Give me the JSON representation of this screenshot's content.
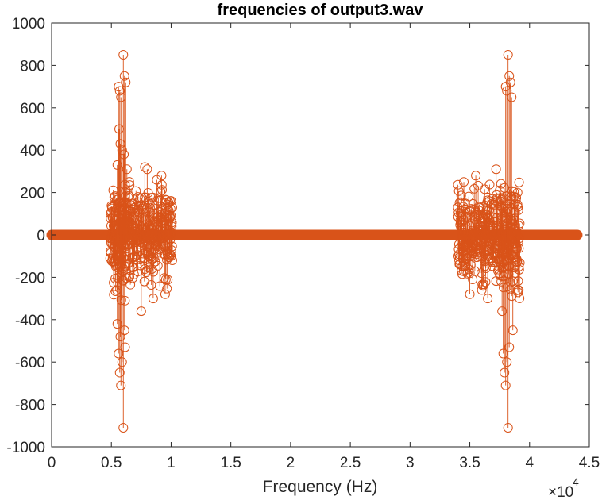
{
  "chart_data": {
    "type": "scatter",
    "title": "frequencies of output3.wav",
    "xlabel": "Frequency (Hz)",
    "ylabel": "",
    "xlim": [
      0,
      45000
    ],
    "ylim": [
      -1000,
      1000
    ],
    "grid": false,
    "x_tick_values": [
      0,
      5000,
      10000,
      15000,
      20000,
      25000,
      30000,
      35000,
      40000,
      45000
    ],
    "x_tick_labels": [
      "0",
      "0.5",
      "1",
      "1.5",
      "2",
      "2.5",
      "3",
      "3.5",
      "4",
      "4.5"
    ],
    "y_tick_values": [
      1000,
      800,
      600,
      400,
      200,
      0,
      -200,
      -400,
      -600,
      -800,
      -1000
    ],
    "y_tick_labels": [
      "1000",
      "800",
      "600",
      "400",
      "200",
      "0",
      "-200",
      "-400",
      "-600",
      "-800",
      "-1000"
    ],
    "x_exponent": {
      "base": "×10",
      "power": "4"
    },
    "marker": "circle",
    "color": "#D95319",
    "series": [
      {
        "values_description_only": false,
        "baseline": {
          "from": 0,
          "to": 44000,
          "value": 0
        },
        "points": [
          [
            5600,
            700
          ],
          [
            5700,
            680
          ],
          [
            5800,
            650
          ],
          [
            6000,
            850
          ],
          [
            6100,
            750
          ],
          [
            6200,
            720
          ],
          [
            5500,
            330
          ],
          [
            5650,
            500
          ],
          [
            5750,
            430
          ],
          [
            5900,
            400
          ],
          [
            6050,
            380
          ],
          [
            6300,
            310
          ],
          [
            7800,
            320
          ],
          [
            8000,
            310
          ],
          [
            8800,
            260
          ],
          [
            9200,
            280
          ],
          [
            9900,
            160
          ],
          [
            10100,
            130
          ],
          [
            5600,
            -560
          ],
          [
            5700,
            -650
          ],
          [
            5800,
            -710
          ],
          [
            5900,
            -600
          ],
          [
            6000,
            -910
          ],
          [
            6150,
            -530
          ],
          [
            5500,
            -420
          ],
          [
            5750,
            -480
          ],
          [
            6100,
            -450
          ],
          [
            7500,
            -360
          ],
          [
            8500,
            -300
          ],
          [
            9500,
            -280
          ],
          [
            10000,
            -100
          ],
          [
            10100,
            -120
          ],
          [
            34000,
            130
          ],
          [
            34100,
            -120
          ],
          [
            35000,
            -280
          ],
          [
            35500,
            280
          ],
          [
            36500,
            -300
          ],
          [
            37200,
            310
          ],
          [
            38000,
            700
          ],
          [
            38100,
            680
          ],
          [
            38200,
            850
          ],
          [
            38300,
            750
          ],
          [
            38400,
            720
          ],
          [
            38500,
            650
          ],
          [
            37700,
            -360
          ],
          [
            37800,
            -560
          ],
          [
            37900,
            -650
          ],
          [
            38000,
            -710
          ],
          [
            38100,
            -600
          ],
          [
            38200,
            -910
          ],
          [
            38300,
            -530
          ],
          [
            38600,
            -450
          ],
          [
            39000,
            200
          ],
          [
            39100,
            -150
          ],
          [
            34500,
            250
          ],
          [
            36000,
            -260
          ]
        ]
      }
    ]
  }
}
